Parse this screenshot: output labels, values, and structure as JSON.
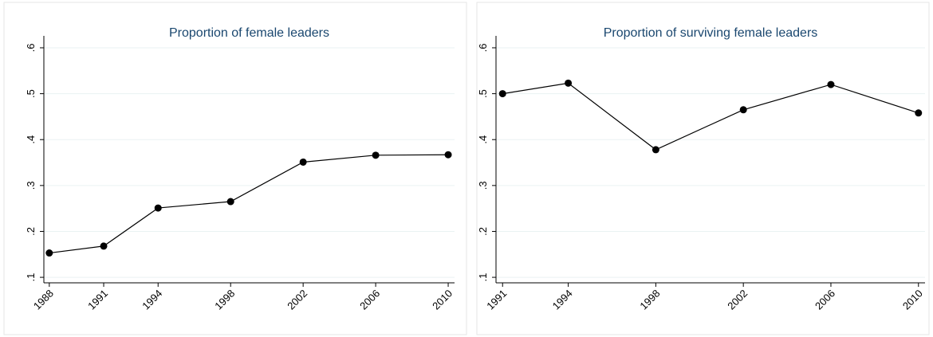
{
  "chart_data": [
    {
      "type": "line",
      "title": "Proportion of female leaders",
      "x": [
        1988,
        1991,
        1994,
        1998,
        2002,
        2006,
        2010
      ],
      "values": [
        0.153,
        0.168,
        0.251,
        0.265,
        0.351,
        0.366,
        0.367
      ],
      "color": "#000000",
      "xlim": [
        1987.7,
        2010.35
      ],
      "xticks": [
        1988,
        1991,
        1994,
        1998,
        2002,
        2006,
        2010
      ],
      "ylim": [
        0.088,
        0.626
      ],
      "yticks": [
        {
          "value": 0.1,
          "label": ".1"
        },
        {
          "value": 0.2,
          "label": ".2"
        },
        {
          "value": 0.3,
          "label": ".3"
        },
        {
          "value": 0.4,
          "label": ".4"
        },
        {
          "value": 0.5,
          "label": ".5"
        },
        {
          "value": 0.6,
          "label": ".6"
        }
      ],
      "grid": true
    },
    {
      "type": "line",
      "title": "Proportion of surviving female leaders",
      "x": [
        1991,
        1994,
        1998,
        2002,
        2006,
        2010
      ],
      "values": [
        0.5,
        0.523,
        0.378,
        0.465,
        0.52,
        0.458
      ],
      "color": "#000000",
      "xlim": [
        1990.7,
        2010.3
      ],
      "xticks": [
        1991,
        1994,
        1998,
        2002,
        2006,
        2010
      ],
      "ylim": [
        0.088,
        0.626
      ],
      "yticks": [
        {
          "value": 0.1,
          "label": ".1"
        },
        {
          "value": 0.2,
          "label": ".2"
        },
        {
          "value": 0.3,
          "label": ".3"
        },
        {
          "value": 0.4,
          "label": ".4"
        },
        {
          "value": 0.5,
          "label": ".5"
        },
        {
          "value": 0.6,
          "label": ".6"
        }
      ],
      "grid": true
    }
  ]
}
